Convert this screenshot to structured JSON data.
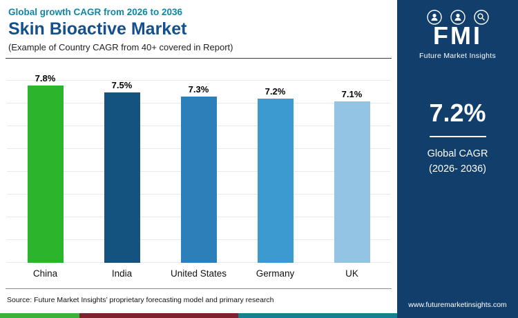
{
  "header": {
    "kicker": "Global growth CAGR from 2026 to 2036",
    "title": "Skin Bioactive Market",
    "subtitle": "(Example of Country CAGR from 40+ covered in Report)"
  },
  "chart_data": {
    "type": "bar",
    "categories": [
      "China",
      "India",
      "United States",
      "Germany",
      "UK"
    ],
    "values": [
      7.8,
      7.5,
      7.3,
      7.2,
      7.1
    ],
    "value_labels": [
      "7.8%",
      "7.5%",
      "7.3%",
      "7.2%",
      "7.1%"
    ],
    "bar_colors": [
      "#2cb42c",
      "#14537f",
      "#2c7fb8",
      "#3d9ad1",
      "#93c4e4"
    ],
    "title": "Skin Bioactive Market",
    "xlabel": "",
    "ylabel": "",
    "ylim": [
      0,
      8
    ],
    "grid": true,
    "legend": "none"
  },
  "source": "Source: Future Market Insights’ proprietary forecasting model and primary research",
  "sidebar": {
    "brand": "FMI",
    "brand_sub": "Future Market Insights",
    "stat_value": "7.2%",
    "stat_label_line1": "Global CAGR",
    "stat_label_line2": "(2026- 2036)",
    "website": "www.futuremarketinsights.com",
    "bg_color": "#123e6c"
  },
  "footer_stripe": {
    "colors": [
      "#3bb13b",
      "#7e222e",
      "#15808e"
    ]
  }
}
